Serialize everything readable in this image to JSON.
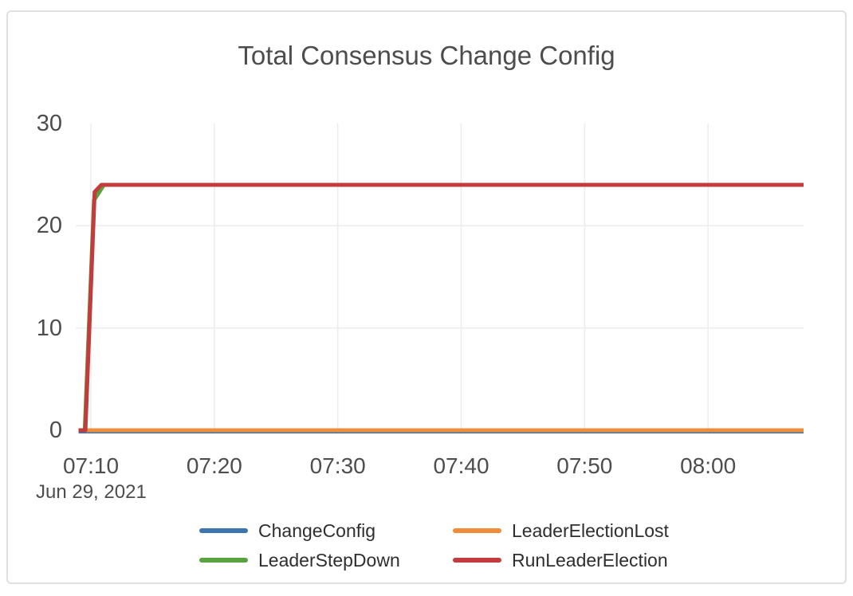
{
  "chart_data": {
    "type": "line",
    "title": "Total Consensus Change Config",
    "xlabel": "",
    "ylabel": "",
    "x_axis": {
      "date_label": "Jun 29, 2021",
      "unit": "minutes after 07:00 on Jun 29, 2021",
      "range_minutes": [
        8.77,
        67.74
      ],
      "ticks": [
        {
          "t": 10,
          "label": "07:10"
        },
        {
          "t": 20,
          "label": "07:20"
        },
        {
          "t": 30,
          "label": "07:30"
        },
        {
          "t": 40,
          "label": "07:40"
        },
        {
          "t": 50,
          "label": "07:50"
        },
        {
          "t": 60,
          "label": "08:00"
        }
      ]
    },
    "y_axis": {
      "range": [
        0,
        30
      ],
      "ticks": [
        30,
        20,
        10,
        0
      ],
      "gridlines_at": [
        10,
        20
      ]
    },
    "grid": "on",
    "legend_position": "bottom",
    "series": [
      {
        "name": "ChangeConfig",
        "color": "#3d76ae",
        "points": [
          [
            9.0,
            0
          ],
          [
            67.74,
            0
          ]
        ]
      },
      {
        "name": "LeaderElectionLost",
        "color": "#ef8d3b",
        "points": [
          [
            9.0,
            0
          ],
          [
            67.74,
            0
          ]
        ]
      },
      {
        "name": "LeaderStepDown",
        "color": "#57a33e",
        "points": [
          [
            9.0,
            0
          ],
          [
            9.5,
            0
          ],
          [
            10.25,
            22.5
          ],
          [
            11.05,
            24
          ],
          [
            67.74,
            24
          ]
        ]
      },
      {
        "name": "RunLeaderElection",
        "color": "#c33c3d",
        "points": [
          [
            9.0,
            0
          ],
          [
            9.55,
            0
          ],
          [
            10.3,
            23.3
          ],
          [
            10.85,
            24
          ],
          [
            67.74,
            24
          ]
        ]
      }
    ],
    "colors": {
      "gridline": "#ededed",
      "tick_text": "#4d4d4d",
      "title_text": "#4d4d4d",
      "legend_text": "#2e2e2e",
      "card_border": "#e0e0e0"
    }
  }
}
